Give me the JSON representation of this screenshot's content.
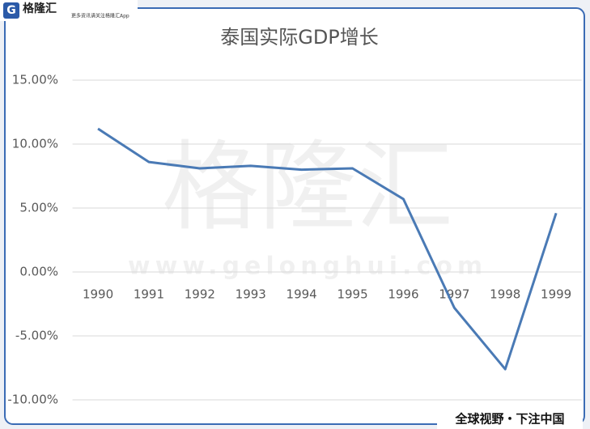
{
  "branding": {
    "logo": "格隆汇",
    "slogan": "更多资讯请关注格隆汇App",
    "watermark": "格隆汇",
    "watermark_url": "www.gelonghui.com",
    "footer": "全球视野・下注中国"
  },
  "chart_data": {
    "type": "line",
    "title": "泰国实际GDP增长",
    "categories": [
      "1990",
      "1991",
      "1992",
      "1993",
      "1994",
      "1995",
      "1996",
      "1997",
      "1998",
      "1999"
    ],
    "values": [
      11.2,
      8.6,
      8.1,
      8.3,
      8.0,
      8.1,
      5.7,
      -2.8,
      -7.6,
      4.6
    ],
    "color": "#4a7ab5",
    "ylim": [
      -10,
      15
    ],
    "yticks": [
      {
        "value": -10,
        "label": "-10.00%"
      },
      {
        "value": -5,
        "label": "-5.00%"
      },
      {
        "value": 0,
        "label": "0.00%"
      },
      {
        "value": 5,
        "label": "5.00%"
      },
      {
        "value": 10,
        "label": "10.00%"
      },
      {
        "value": 15,
        "label": "15.00%"
      }
    ],
    "grid": true
  }
}
